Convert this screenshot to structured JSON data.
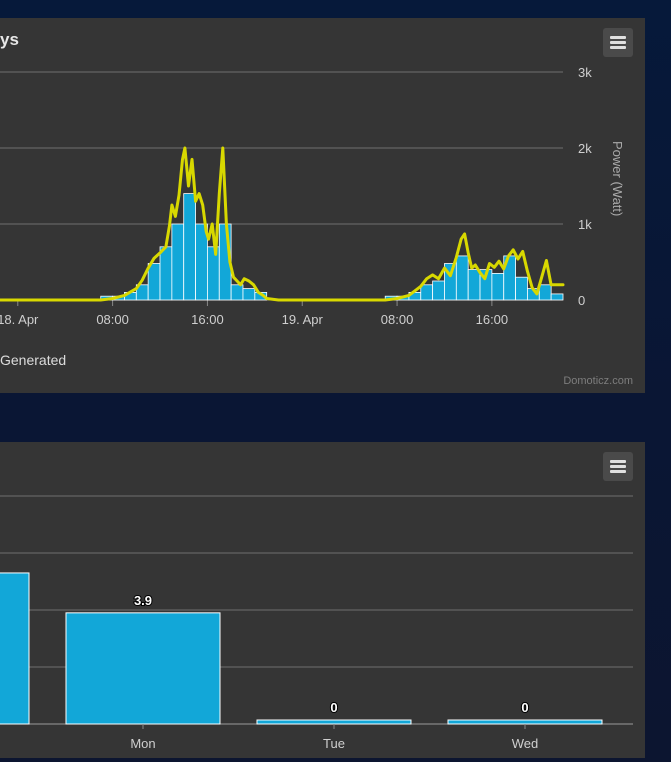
{
  "top_panel": {
    "title": "ys",
    "legend_item": "Generated",
    "credit": "Domoticz.com",
    "menu_icon": "hamburger-menu-icon"
  },
  "bottom_panel": {
    "menu_icon": "hamburger-menu-icon"
  },
  "chart_data": [
    {
      "type": "bar",
      "x_labels": [
        "18. Apr",
        "08:00",
        "16:00",
        "19. Apr",
        "08:00",
        "16:00"
      ],
      "ylabel": "Power (Watt)",
      "y_ticks": [
        "0",
        "1k",
        "2k",
        "3k"
      ],
      "ylim": [
        0,
        3000
      ],
      "x_range_hours": [
        -1.5,
        46.0
      ],
      "bar_color": "#12a7d8",
      "line_color": "#d8d800",
      "bars": {
        "hours": [
          7.5,
          8.5,
          9.5,
          10.5,
          11.5,
          12.5,
          13.5,
          14.5,
          15.5,
          16.5,
          17.5,
          18.5,
          19.5,
          20.5,
          31.5,
          32.5,
          33.5,
          34.5,
          35.5,
          36.5,
          37.5,
          38.5,
          39.5,
          40.5,
          41.5,
          42.5,
          43.5,
          44.5,
          45.5
        ],
        "values": [
          50,
          50,
          100,
          200,
          480,
          700,
          1000,
          1400,
          1000,
          700,
          1000,
          200,
          150,
          100,
          50,
          50,
          100,
          200,
          250,
          480,
          580,
          400,
          400,
          350,
          580,
          300,
          150,
          200,
          80
        ]
      },
      "line": {
        "hours": [
          -1.5,
          7.0,
          8.0,
          9.0,
          10.0,
          10.5,
          11.0,
          11.5,
          12.0,
          12.5,
          12.8,
          13.0,
          13.3,
          13.6,
          13.9,
          14.1,
          14.4,
          14.7,
          15.0,
          15.3,
          15.6,
          15.9,
          16.1,
          16.4,
          16.7,
          17.0,
          17.3,
          17.6,
          17.9,
          18.2,
          18.5,
          18.8,
          19.1,
          19.5,
          19.9,
          20.3,
          20.7,
          21.0,
          22.0,
          30.0,
          31.0,
          32.0,
          33.0,
          33.5,
          34.0,
          34.5,
          35.0,
          35.5,
          36.0,
          36.5,
          37.0,
          37.4,
          37.7,
          38.0,
          38.3,
          38.6,
          39.0,
          39.4,
          39.8,
          40.2,
          40.6,
          41.0,
          41.4,
          41.8,
          42.2,
          42.6,
          43.0,
          43.4,
          43.8,
          44.2,
          44.6,
          45.0,
          45.5,
          46.0
        ],
        "values": [
          0,
          0,
          20,
          60,
          150,
          260,
          420,
          550,
          620,
          700,
          980,
          1250,
          1100,
          1380,
          1850,
          2000,
          1500,
          1850,
          1300,
          1400,
          1250,
          900,
          800,
          1000,
          600,
          1400,
          2000,
          1000,
          500,
          300,
          250,
          200,
          280,
          250,
          200,
          100,
          60,
          20,
          0,
          0,
          0,
          20,
          60,
          120,
          180,
          280,
          330,
          280,
          420,
          320,
          560,
          800,
          870,
          620,
          420,
          460,
          360,
          280,
          480,
          430,
          510,
          410,
          580,
          660,
          540,
          640,
          380,
          160,
          80,
          300,
          520,
          200,
          200,
          200
        ]
      }
    },
    {
      "type": "bar",
      "categories": [
        "",
        "Mon",
        "Tue",
        "Wed"
      ],
      "values": [
        5.3,
        3.9,
        0,
        0
      ],
      "data_labels": [
        "",
        "3.9",
        "0",
        "0"
      ],
      "ylim": [
        0,
        8
      ],
      "bar_color": "#12a7d8"
    }
  ]
}
